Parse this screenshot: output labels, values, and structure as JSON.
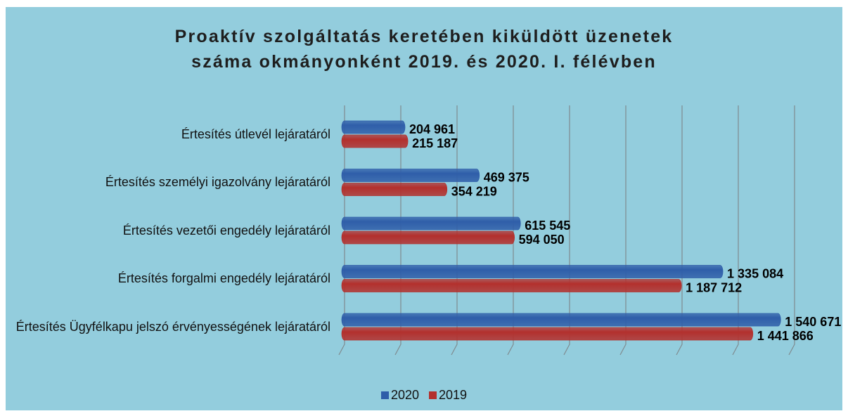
{
  "chart_data": {
    "type": "bar",
    "orientation": "horizontal",
    "title": "Proaktív szolgáltatás keretében kiküldött üzenetek száma okmányonként 2019. és 2020. I. félévben",
    "categories": [
      "Értesítés útlevél lejáratáról",
      "Értesítés személyi igazolvány lejáratáról",
      "Értesítés vezetői engedély lejáratáról",
      "Értesítés forgalmi engedély lejáratáról",
      "Értesítés Ügyfélkapu jelszó érvényességének lejáratáról"
    ],
    "series": [
      {
        "name": "2020",
        "color": "#2f5ea9",
        "values": [
          204961,
          469375,
          615545,
          1335084,
          1540671
        ],
        "value_labels": [
          "204 961",
          "469 375",
          "615 545",
          "1 335 084",
          "1 540 671"
        ]
      },
      {
        "name": "2019",
        "color": "#b3302d",
        "values": [
          215187,
          354219,
          594050,
          1187712,
          1441866
        ],
        "value_labels": [
          "215 187",
          "354 219",
          "594 050",
          "1 187 712",
          "1 441 866"
        ]
      }
    ],
    "xlim": [
      0,
      1600000
    ],
    "xticks": [
      0,
      200000,
      400000,
      600000,
      800000,
      1000000,
      1200000,
      1400000,
      1600000
    ],
    "grid": true,
    "legend": "bottom"
  }
}
